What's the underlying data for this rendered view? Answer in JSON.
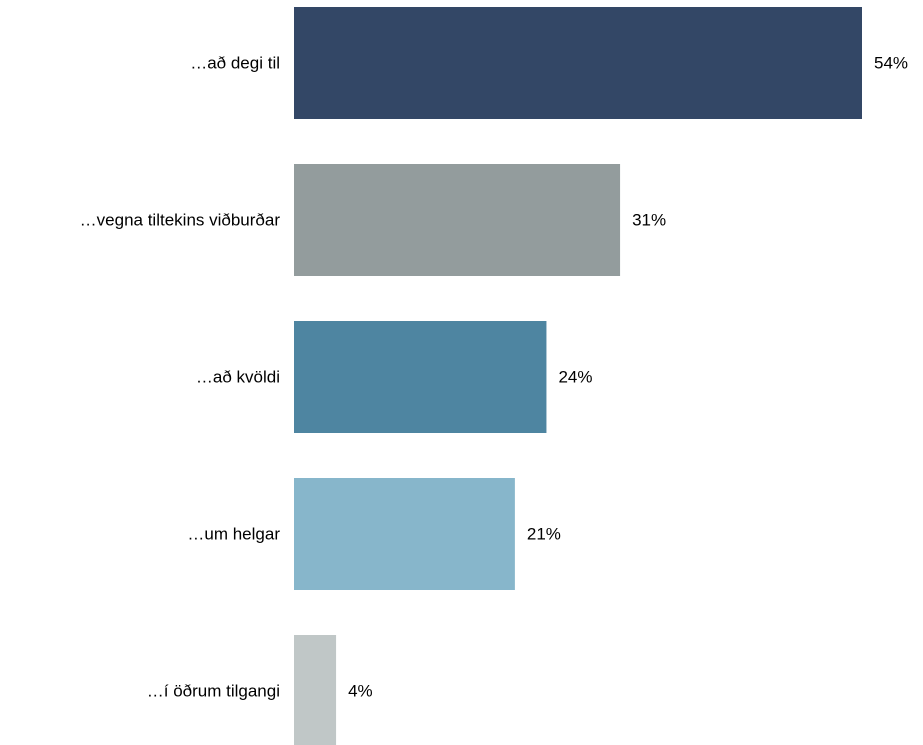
{
  "chart_data": {
    "type": "bar",
    "orientation": "horizontal",
    "categories": [
      "…að degi til",
      "…vegna tiltekins viðburðar",
      "…að kvöldi",
      "…um helgar",
      "…í öðrum tilgangi"
    ],
    "values": [
      54,
      31,
      24,
      21,
      4
    ],
    "value_labels": [
      "54%",
      "31%",
      "24%",
      "21%",
      "4%"
    ],
    "colors": [
      "#334766",
      "#939c9d",
      "#4e85a1",
      "#87b6cb",
      "#c0c7c7"
    ],
    "title": "",
    "xlabel": "",
    "ylabel": "",
    "xlim": [
      0,
      54
    ],
    "unit": "%",
    "grid": false,
    "legend": "none"
  }
}
